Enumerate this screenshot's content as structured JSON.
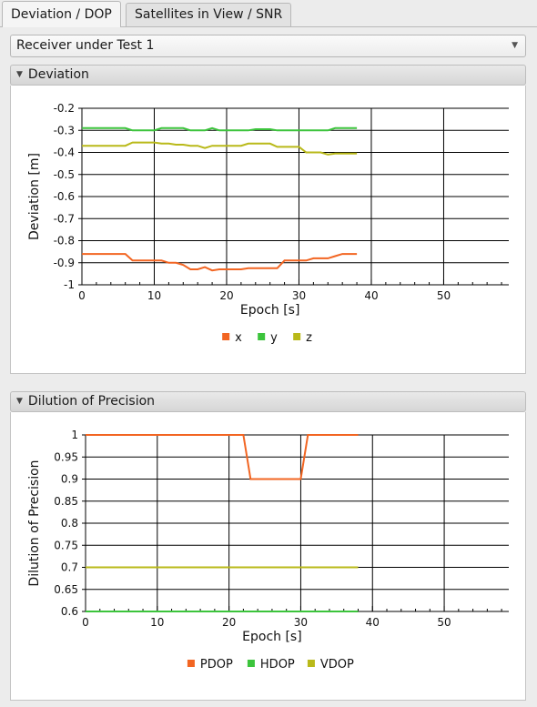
{
  "tabs": [
    {
      "label": "Deviation / DOP",
      "active": true
    },
    {
      "label": "Satellites in View / SNR",
      "active": false
    }
  ],
  "receiver_select": {
    "value": "Receiver under Test 1"
  },
  "sections": {
    "deviation": {
      "title": "Deviation"
    },
    "dop": {
      "title": "Dilution of Precision"
    }
  },
  "colors": {
    "orange": "#f26522",
    "green": "#3cc43c",
    "olive": "#b9b919"
  },
  "icons": {
    "collapse": "triangle-down-icon",
    "dropdown": "chevron-down-icon"
  },
  "chart_data": [
    {
      "type": "line",
      "xlabel": "Epoch [s]",
      "ylabel": "Deviation [m]",
      "xlim": [
        0,
        59
      ],
      "ylim": [
        -1,
        -0.2
      ],
      "xticks": [
        0,
        10,
        20,
        30,
        40,
        50
      ],
      "yticks": [
        -0.2,
        -0.3,
        -0.4,
        -0.5,
        -0.6,
        -0.7,
        -0.8,
        -0.9,
        -1
      ],
      "grid": true,
      "legend_position": "bottom-center",
      "series": [
        {
          "name": "x",
          "color": "#f26522",
          "x": [
            0,
            6,
            7,
            10,
            11,
            12,
            13,
            14,
            15,
            16,
            17,
            18,
            19,
            20,
            21,
            22,
            23,
            24,
            25,
            26,
            27,
            28,
            29,
            30,
            31,
            32,
            33,
            34,
            35,
            36,
            37,
            38
          ],
          "y": [
            -0.86,
            -0.86,
            -0.89,
            -0.89,
            -0.89,
            -0.9,
            -0.9,
            -0.91,
            -0.93,
            -0.93,
            -0.92,
            -0.935,
            -0.93,
            -0.93,
            -0.93,
            -0.93,
            -0.925,
            -0.925,
            -0.925,
            -0.925,
            -0.925,
            -0.89,
            -0.89,
            -0.89,
            -0.89,
            -0.88,
            -0.88,
            -0.88,
            -0.87,
            -0.86,
            -0.86,
            -0.86
          ]
        },
        {
          "name": "y",
          "color": "#3cc43c",
          "x": [
            0,
            6,
            7,
            10,
            11,
            14,
            15,
            16,
            17,
            18,
            19,
            20,
            22,
            23,
            24,
            25,
            26,
            27,
            28,
            29,
            30,
            32,
            33,
            34,
            35,
            36,
            37,
            38
          ],
          "y": [
            -0.29,
            -0.29,
            -0.3,
            -0.3,
            -0.29,
            -0.29,
            -0.3,
            -0.3,
            -0.3,
            -0.29,
            -0.3,
            -0.3,
            -0.3,
            -0.3,
            -0.295,
            -0.295,
            -0.295,
            -0.3,
            -0.3,
            -0.3,
            -0.3,
            -0.3,
            -0.3,
            -0.3,
            -0.29,
            -0.29,
            -0.29,
            -0.29
          ]
        },
        {
          "name": "z",
          "color": "#b9b919",
          "x": [
            0,
            6,
            7,
            10,
            11,
            12,
            13,
            14,
            15,
            16,
            17,
            18,
            19,
            20,
            21,
            22,
            23,
            24,
            25,
            26,
            27,
            28,
            29,
            30,
            31,
            32,
            33,
            34,
            35,
            36,
            37,
            38
          ],
          "y": [
            -0.37,
            -0.37,
            -0.355,
            -0.355,
            -0.36,
            -0.36,
            -0.365,
            -0.365,
            -0.37,
            -0.37,
            -0.38,
            -0.37,
            -0.37,
            -0.37,
            -0.37,
            -0.37,
            -0.36,
            -0.36,
            -0.36,
            -0.36,
            -0.375,
            -0.375,
            -0.375,
            -0.375,
            -0.4,
            -0.4,
            -0.4,
            -0.41,
            -0.405,
            -0.405,
            -0.405,
            -0.405
          ]
        }
      ]
    },
    {
      "type": "line",
      "xlabel": "Epoch [s]",
      "ylabel": "Dilution of Precision",
      "xlim": [
        0,
        59
      ],
      "ylim": [
        0.6,
        1
      ],
      "xticks": [
        0,
        10,
        20,
        30,
        40,
        50
      ],
      "yticks": [
        1,
        0.95,
        0.9,
        0.85,
        0.8,
        0.75,
        0.7,
        0.65,
        0.6
      ],
      "grid": true,
      "legend_position": "bottom-center",
      "series": [
        {
          "name": "PDOP",
          "color": "#f26522",
          "x": [
            0,
            22,
            23,
            29,
            30,
            31,
            38
          ],
          "y": [
            1,
            1,
            0.9,
            0.9,
            0.9,
            1,
            1
          ]
        },
        {
          "name": "HDOP",
          "color": "#3cc43c",
          "x": [
            0,
            38
          ],
          "y": [
            0.6,
            0.6
          ]
        },
        {
          "name": "VDOP",
          "color": "#b9b919",
          "x": [
            0,
            38
          ],
          "y": [
            0.7,
            0.7
          ]
        }
      ]
    }
  ]
}
